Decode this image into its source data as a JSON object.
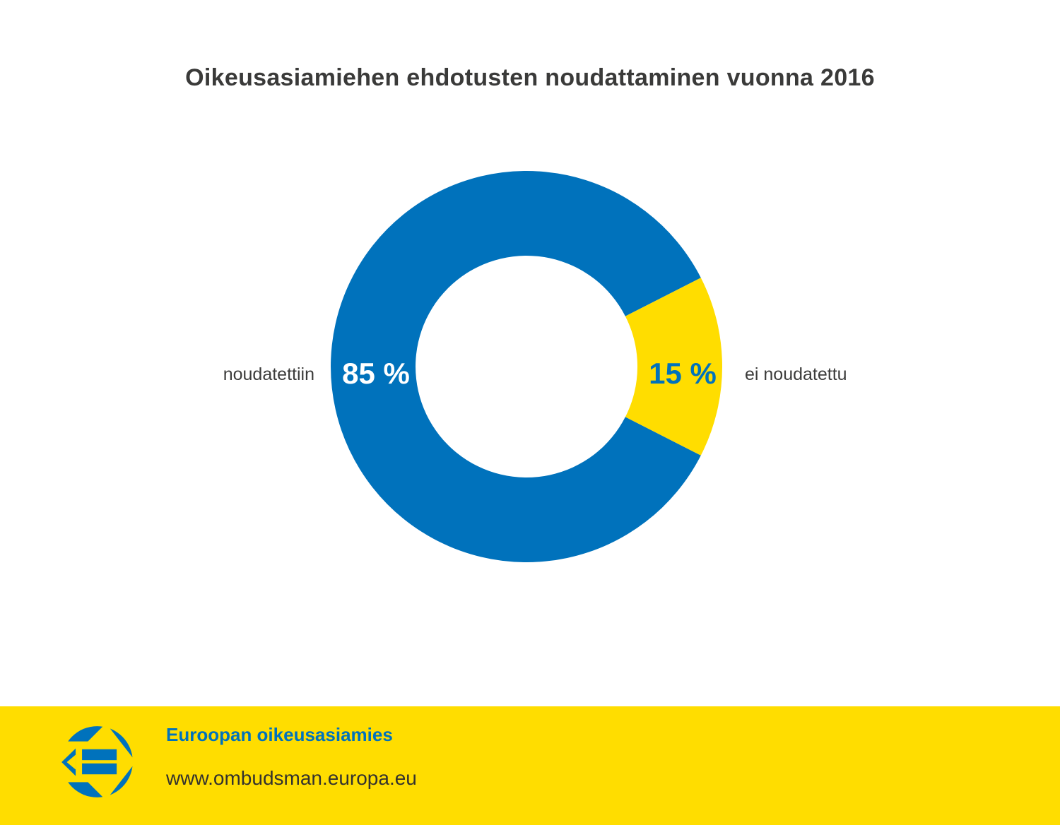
{
  "title": "Oikeusasiamiehen ehdotusten noudattaminen vuonna 2016",
  "chart_data": {
    "type": "pie",
    "variant": "donut",
    "title": "Oikeusasiamiehen ehdotusten noudattaminen vuonna 2016",
    "unit": "%",
    "total": 100,
    "slices": [
      {
        "label": "noudatettiin",
        "value": 85,
        "value_label": "85 %",
        "color": "#0072BC",
        "value_label_color": "#FFFFFF"
      },
      {
        "label": "ei noudatettu",
        "value": 15,
        "value_label": "15 %",
        "color": "#FFDD00",
        "value_label_color": "#0072BC"
      }
    ],
    "layout": {
      "minor_slice_centered_at_deg": 0,
      "labels_position": "sides",
      "value_labels_inside_ring": true,
      "hole_ratio": 0.57
    }
  },
  "footer": {
    "organization": "Euroopan oikeusasiamies",
    "website": "www.ombudsman.europa.eu",
    "background_color": "#FFDD00",
    "organization_color": "#0072BC",
    "website_color": "#33322E",
    "logo": "european-ombudsman-logo"
  },
  "colors": {
    "brand_blue": "#0072BC",
    "brand_yellow": "#FFDD00",
    "text_dark": "#3C3C3B",
    "page_background": "#FFFFFF"
  }
}
